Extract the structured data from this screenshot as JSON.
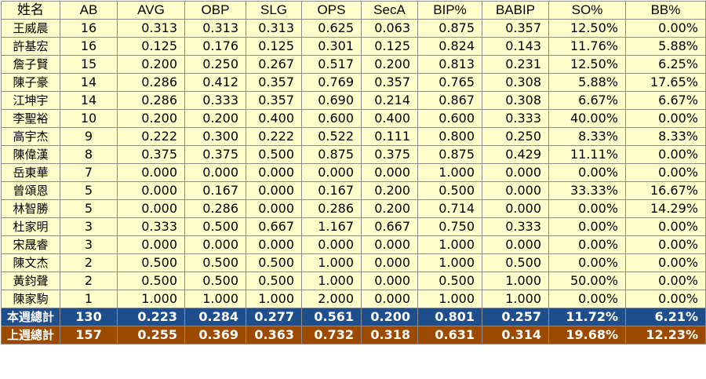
{
  "table": {
    "headers": [
      "姓名",
      "AB",
      "AVG",
      "OBP",
      "SLG",
      "OPS",
      "SecA",
      "BIP%",
      "BABIP",
      "SO%",
      "BB%"
    ],
    "rows": [
      [
        "王威晨",
        "16",
        "0.313",
        "0.313",
        "0.313",
        "0.625",
        "0.063",
        "0.875",
        "0.357",
        "12.50%",
        "0.00%"
      ],
      [
        "許基宏",
        "16",
        "0.125",
        "0.176",
        "0.125",
        "0.301",
        "0.125",
        "0.824",
        "0.143",
        "11.76%",
        "5.88%"
      ],
      [
        "詹子賢",
        "15",
        "0.200",
        "0.250",
        "0.267",
        "0.517",
        "0.200",
        "0.813",
        "0.231",
        "12.50%",
        "6.25%"
      ],
      [
        "陳子豪",
        "14",
        "0.286",
        "0.412",
        "0.357",
        "0.769",
        "0.357",
        "0.765",
        "0.308",
        "5.88%",
        "17.65%"
      ],
      [
        "江坤宇",
        "14",
        "0.286",
        "0.333",
        "0.357",
        "0.690",
        "0.214",
        "0.867",
        "0.308",
        "6.67%",
        "6.67%"
      ],
      [
        "李聖裕",
        "10",
        "0.200",
        "0.200",
        "0.400",
        "0.600",
        "0.400",
        "0.600",
        "0.333",
        "40.00%",
        "0.00%"
      ],
      [
        "高宇杰",
        "9",
        "0.222",
        "0.300",
        "0.222",
        "0.522",
        "0.111",
        "0.800",
        "0.250",
        "8.33%",
        "8.33%"
      ],
      [
        "陳偉漢",
        "8",
        "0.375",
        "0.375",
        "0.500",
        "0.875",
        "0.375",
        "0.875",
        "0.429",
        "11.11%",
        "0.00%"
      ],
      [
        "岳東華",
        "7",
        "0.000",
        "0.000",
        "0.000",
        "0.000",
        "0.000",
        "1.000",
        "0.000",
        "0.00%",
        "0.00%"
      ],
      [
        "曾頌恩",
        "5",
        "0.000",
        "0.167",
        "0.000",
        "0.167",
        "0.200",
        "0.500",
        "0.000",
        "33.33%",
        "16.67%"
      ],
      [
        "林智勝",
        "5",
        "0.000",
        "0.286",
        "0.000",
        "0.286",
        "0.200",
        "0.714",
        "0.000",
        "0.00%",
        "14.29%"
      ],
      [
        "杜家明",
        "3",
        "0.333",
        "0.500",
        "0.667",
        "1.167",
        "0.667",
        "0.750",
        "0.333",
        "0.00%",
        "0.00%"
      ],
      [
        "宋晟睿",
        "3",
        "0.000",
        "0.000",
        "0.000",
        "0.000",
        "0.000",
        "1.000",
        "0.000",
        "0.00%",
        "0.00%"
      ],
      [
        "陳文杰",
        "2",
        "0.500",
        "0.500",
        "0.500",
        "1.000",
        "0.000",
        "1.000",
        "0.500",
        "0.00%",
        "0.00%"
      ],
      [
        "黃鈞聲",
        "2",
        "0.500",
        "0.500",
        "0.500",
        "1.000",
        "0.000",
        "0.500",
        "1.000",
        "50.00%",
        "0.00%"
      ],
      [
        "陳家駒",
        "1",
        "1.000",
        "1.000",
        "1.000",
        "2.000",
        "0.000",
        "1.000",
        "1.000",
        "0.00%",
        "0.00%"
      ]
    ],
    "totals": [
      [
        "本週總計",
        "130",
        "0.223",
        "0.284",
        "0.277",
        "0.561",
        "0.200",
        "0.801",
        "0.257",
        "11.72%",
        "6.21%"
      ],
      [
        "上週總計",
        "157",
        "0.255",
        "0.369",
        "0.363",
        "0.732",
        "0.318",
        "0.631",
        "0.314",
        "19.68%",
        "12.23%"
      ]
    ]
  },
  "colors": {
    "body_bg": "#ffffcc",
    "this_week_bg": "#1f4e8c",
    "last_week_bg": "#9b4a00",
    "border": "#8c8c8c"
  }
}
